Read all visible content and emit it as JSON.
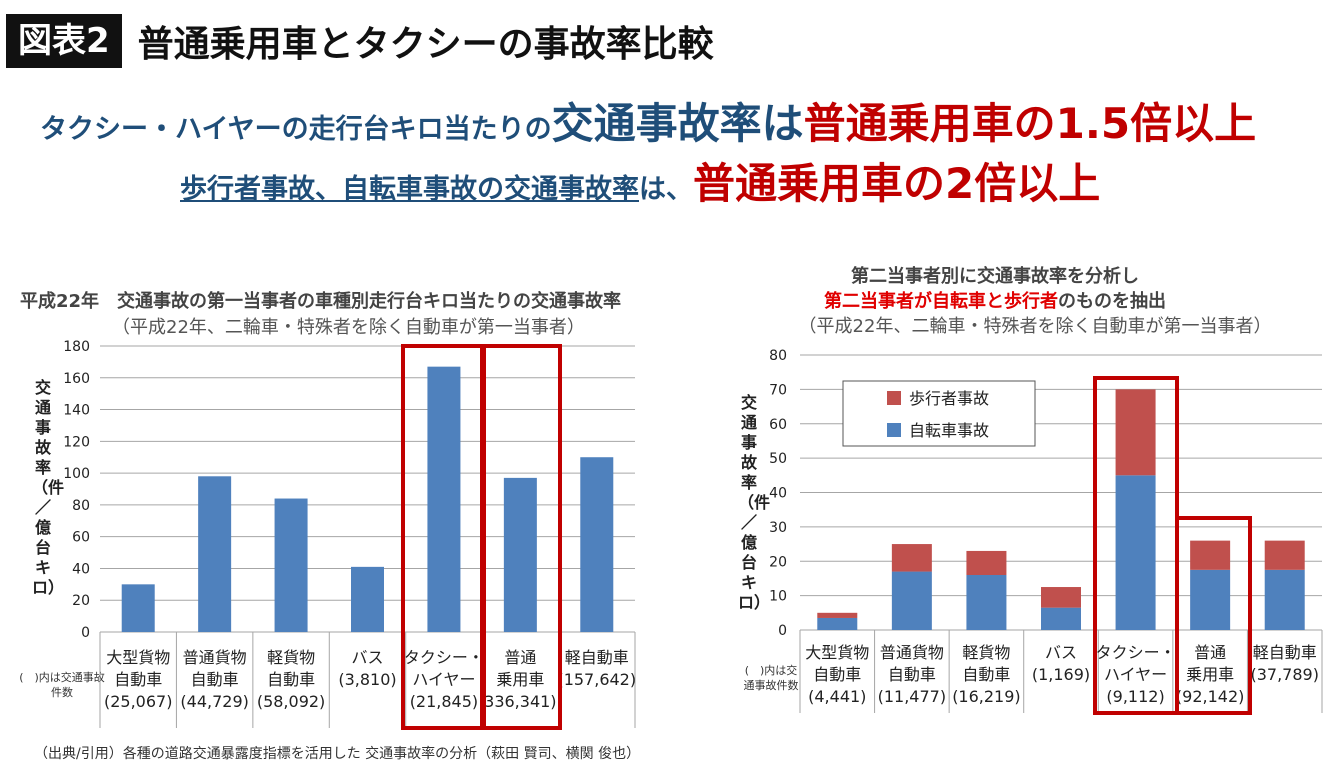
{
  "header": {
    "figure_label": "図表2",
    "title": "普通乗用車とタクシーの事故率比較"
  },
  "headline": {
    "line1_a": "タクシー・ハイヤーの走行台キロ当たりの",
    "line1_b": "交通事故率は",
    "line1_c": "普通乗用車の1.5倍以上",
    "line2_a": "歩行者事故、自転車事故の交通事故率",
    "line2_b": "は、",
    "line2_c": "普通乗用車の2倍以上"
  },
  "left_chart": {
    "title": "平成22年　交通事故の第一当事者の車種別走行台キロ当たりの交通事故率",
    "subtitle": "（平成22年、二輪車・特殊者を除く自動車が第一当事者）",
    "ylabel": "交通事故率（件／億台キロ）",
    "note": "(　)内は交通事故件数"
  },
  "right_chart": {
    "title_line1": "第二当事者別に交通事故率を分析し",
    "title_line2_red": "第二当事者が自転車と歩行者",
    "title_line2_rest": "のものを抽出",
    "subtitle": "（平成22年、二輪車・特殊者を除く自動車が第一当事者）",
    "ylabel": "交通事故率（件／億台キロ）",
    "note": "(　)内は交通事故件数"
  },
  "source": "（出典/引用）各種の道路交通暴露度指標を活用した 交通事故率の分析（萩田 賢司、横関 俊也）",
  "colors": {
    "bar": "#4f81bd",
    "stack_top": "#c0504d",
    "highlight": "#c00000"
  },
  "chart_data": [
    {
      "type": "bar",
      "categories": [
        "大型貨物自動車",
        "普通貨物自動車",
        "軽貨物自動車",
        "バス",
        "タクシー・ハイヤー",
        "普通乗用車",
        "軽自動車"
      ],
      "category_lines": [
        [
          "大型貨物",
          "自動車",
          "(25,067)"
        ],
        [
          "普通貨物",
          "自動車",
          "(44,729)"
        ],
        [
          "軽貨物",
          "自動車",
          "(58,092)"
        ],
        [
          "バス",
          "(3,810)"
        ],
        [
          "タクシー・",
          "ハイヤー",
          "(21,845)"
        ],
        [
          "普通",
          "乗用車",
          "336,341)"
        ],
        [
          "軽自動車",
          "(157,642)"
        ]
      ],
      "counts": [
        "25,067",
        "44,729",
        "58,092",
        "3,810",
        "21,845",
        "336,341",
        "157,642"
      ],
      "values": [
        30,
        98,
        84,
        41,
        167,
        97,
        110
      ],
      "ylim": [
        0,
        180
      ],
      "yticks": [
        0,
        20,
        40,
        60,
        80,
        100,
        120,
        140,
        160,
        180
      ],
      "ylabel": "交通事故率（件／億台キロ）",
      "highlighted": [
        "タクシー・ハイヤー",
        "普通乗用車"
      ],
      "grid": true
    },
    {
      "type": "bar",
      "stacked": true,
      "categories": [
        "大型貨物自動車",
        "普通貨物自動車",
        "軽貨物自動車",
        "バス",
        "タクシー・ハイヤー",
        "普通乗用車",
        "軽自動車"
      ],
      "category_lines": [
        [
          "大型貨物",
          "自動車",
          "(4,441)"
        ],
        [
          "普通貨物",
          "自動車",
          "(11,477)"
        ],
        [
          "軽貨物",
          "自動車",
          "(16,219)"
        ],
        [
          "バス",
          "(1,169)"
        ],
        [
          "タクシー・",
          "ハイヤー",
          "(9,112)"
        ],
        [
          "普通",
          "乗用車",
          "(92,142)"
        ],
        [
          "軽自動車",
          "(37,789)"
        ]
      ],
      "counts": [
        "4,441",
        "11,477",
        "16,219",
        "1,169",
        "9,112",
        "92,142",
        "37,789"
      ],
      "series": [
        {
          "name": "自転車事故",
          "values": [
            3.5,
            17,
            16,
            6.5,
            45,
            17.5,
            17.5
          ]
        },
        {
          "name": "歩行者事故",
          "values": [
            1.5,
            8,
            7,
            6,
            25,
            8.5,
            8.5
          ]
        }
      ],
      "ylim": [
        0,
        80
      ],
      "yticks": [
        0,
        10,
        20,
        30,
        40,
        50,
        60,
        70,
        80
      ],
      "ylabel": "交通事故率（件／億台キロ）",
      "legend_position": "top-left",
      "highlighted": [
        "タクシー・ハイヤー",
        "普通乗用車"
      ],
      "grid": true
    }
  ]
}
